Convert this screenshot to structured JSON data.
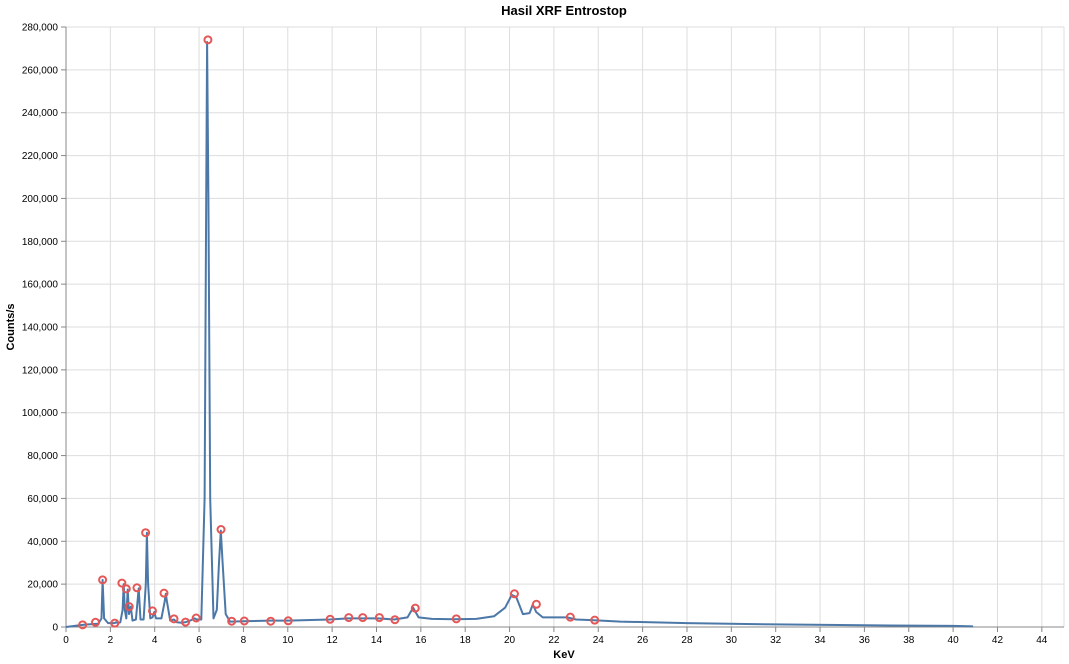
{
  "chart_data": {
    "type": "line",
    "title": "Hasil XRF Entrostop",
    "xlabel": "KeV",
    "ylabel": "Counts/s",
    "xlim": [
      0,
      45
    ],
    "ylim": [
      0,
      280000
    ],
    "x_ticks": [
      "0",
      "2",
      "4",
      "6",
      "8",
      "10",
      "12",
      "14",
      "16",
      "18",
      "20",
      "22",
      "24",
      "26",
      "28",
      "30",
      "32",
      "34",
      "36",
      "38",
      "40",
      "42",
      "44"
    ],
    "y_ticks": [
      "0",
      "20,000",
      "40,000",
      "60,000",
      "80,000",
      "100,000",
      "120,000",
      "140,000",
      "160,000",
      "180,000",
      "200,000",
      "220,000",
      "240,000",
      "260,000",
      "280,000"
    ],
    "grid": true,
    "colors": {
      "line": "#4c78a8",
      "peak_marker": "#e45756"
    },
    "series": [
      {
        "values": [
          [
            0.0,
            0
          ],
          [
            0.75,
            1000
          ],
          [
            1.0,
            1200
          ],
          [
            1.45,
            1500
          ],
          [
            1.6,
            4000
          ],
          [
            1.65,
            22000
          ],
          [
            1.72,
            4000
          ],
          [
            1.9,
            1800
          ],
          [
            2.2,
            1800
          ],
          [
            2.25,
            2200
          ],
          [
            2.35,
            1800
          ],
          [
            2.45,
            2200
          ],
          [
            2.55,
            8000
          ],
          [
            2.6,
            20000
          ],
          [
            2.65,
            8000
          ],
          [
            2.72,
            4000
          ],
          [
            2.78,
            17500
          ],
          [
            2.84,
            6000
          ],
          [
            2.92,
            9500
          ],
          [
            3.0,
            3000
          ],
          [
            3.15,
            3500
          ],
          [
            3.28,
            18000
          ],
          [
            3.36,
            3500
          ],
          [
            3.5,
            3500
          ],
          [
            3.6,
            20000
          ],
          [
            3.65,
            44000
          ],
          [
            3.7,
            20000
          ],
          [
            3.8,
            4000
          ],
          [
            3.9,
            4500
          ],
          [
            3.98,
            7000
          ],
          [
            4.06,
            4000
          ],
          [
            4.3,
            4000
          ],
          [
            4.45,
            12000
          ],
          [
            4.5,
            15500
          ],
          [
            4.55,
            12000
          ],
          [
            4.7,
            3000
          ],
          [
            4.87,
            3500
          ],
          [
            5.0,
            2200
          ],
          [
            5.2,
            2000
          ],
          [
            5.4,
            2300
          ],
          [
            5.6,
            3000
          ],
          [
            5.8,
            4000
          ],
          [
            5.9,
            3500
          ],
          [
            6.1,
            3500
          ],
          [
            6.25,
            60000
          ],
          [
            6.32,
            200000
          ],
          [
            6.36,
            273000
          ],
          [
            6.42,
            200000
          ],
          [
            6.5,
            60000
          ],
          [
            6.65,
            4000
          ],
          [
            6.8,
            8000
          ],
          [
            6.9,
            30000
          ],
          [
            6.98,
            45000
          ],
          [
            7.06,
            30000
          ],
          [
            7.2,
            6000
          ],
          [
            7.4,
            2500
          ],
          [
            8.0,
            2700
          ],
          [
            9.2,
            3000
          ],
          [
            10.0,
            3000
          ],
          [
            11.9,
            3500
          ],
          [
            12.7,
            4000
          ],
          [
            13.3,
            4000
          ],
          [
            14.1,
            4000
          ],
          [
            14.8,
            3500
          ],
          [
            15.4,
            4500
          ],
          [
            15.65,
            9000
          ],
          [
            15.9,
            4500
          ],
          [
            16.5,
            3800
          ],
          [
            17.5,
            3600
          ],
          [
            18.5,
            3800
          ],
          [
            19.3,
            5000
          ],
          [
            19.8,
            9000
          ],
          [
            20.1,
            15000
          ],
          [
            20.3,
            14000
          ],
          [
            20.6,
            6000
          ],
          [
            20.9,
            6500
          ],
          [
            21.05,
            10500
          ],
          [
            21.2,
            7000
          ],
          [
            21.5,
            4500
          ],
          [
            22.6,
            4500
          ],
          [
            23.0,
            3500
          ],
          [
            23.7,
            3200
          ],
          [
            25.0,
            2500
          ],
          [
            28.0,
            1800
          ],
          [
            32.0,
            1200
          ],
          [
            36.0,
            800
          ],
          [
            40.0,
            500
          ],
          [
            40.9,
            300
          ]
        ]
      }
    ],
    "peaks": [
      [
        0.75,
        1000
      ],
      [
        1.33,
        2200
      ],
      [
        1.65,
        22000
      ],
      [
        2.2,
        1800
      ],
      [
        2.52,
        20500
      ],
      [
        2.72,
        17800
      ],
      [
        2.85,
        9500
      ],
      [
        3.2,
        18300
      ],
      [
        3.59,
        44000
      ],
      [
        3.9,
        7500
      ],
      [
        4.42,
        15800
      ],
      [
        4.87,
        3800
      ],
      [
        5.39,
        2300
      ],
      [
        5.87,
        4200
      ],
      [
        6.4,
        274000
      ],
      [
        6.99,
        45500
      ],
      [
        7.47,
        2700
      ],
      [
        8.04,
        2800
      ],
      [
        9.23,
        2700
      ],
      [
        10.02,
        2900
      ],
      [
        11.91,
        3600
      ],
      [
        12.75,
        4400
      ],
      [
        13.38,
        4400
      ],
      [
        14.13,
        4400
      ],
      [
        14.83,
        3400
      ],
      [
        15.75,
        8800
      ],
      [
        17.6,
        3800
      ],
      [
        20.22,
        15500
      ],
      [
        21.21,
        10600
      ],
      [
        22.74,
        4600
      ],
      [
        23.84,
        3200
      ]
    ]
  }
}
